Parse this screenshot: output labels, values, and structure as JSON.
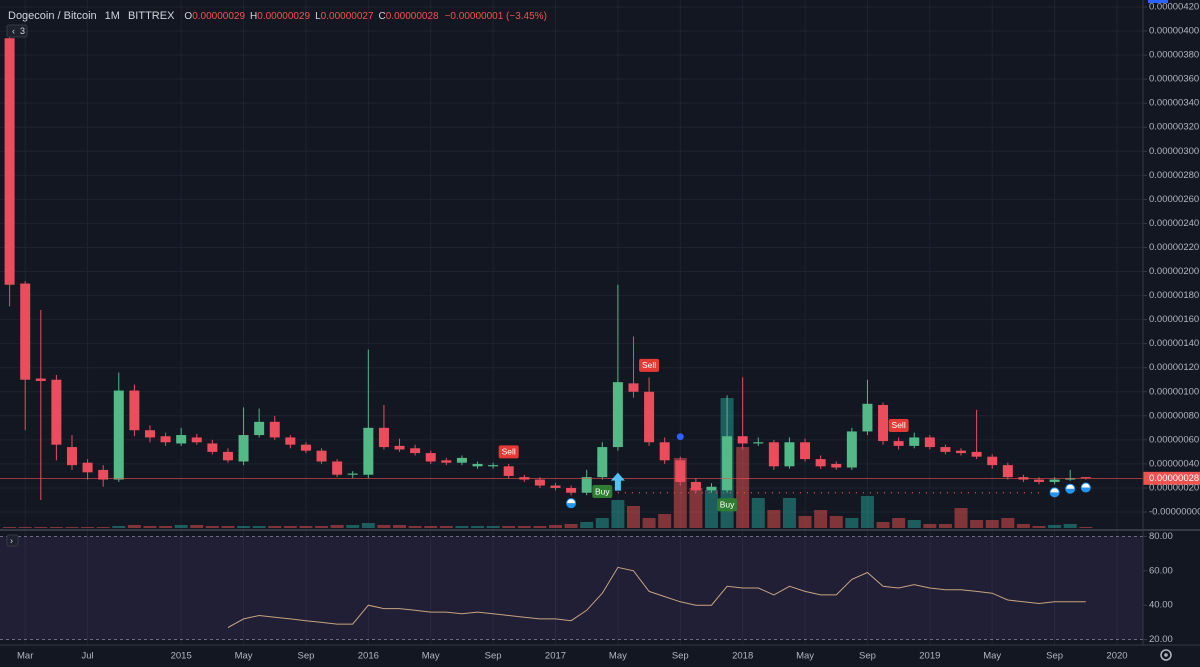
{
  "chart_data": [
    {
      "type": "candlestick",
      "symbol": "Dogecoin / Bitcoin",
      "interval": "1M",
      "exchange": "BITTREX",
      "ohlc_header": [
        {
          "label": "O",
          "value": "0.00000029"
        },
        {
          "label": "H",
          "value": "0.00000029"
        },
        {
          "label": "L",
          "value": "0.00000027"
        },
        {
          "label": "C",
          "value": "0.00000028"
        }
      ],
      "change": "−0.00000001 (−3.45%)",
      "badge": "3",
      "x": [
        "2014-02",
        "2014-03",
        "2014-04",
        "2014-05",
        "2014-06",
        "2014-07",
        "2014-08",
        "2014-09",
        "2014-10",
        "2014-11",
        "2014-12",
        "2015-01",
        "2015-02",
        "2015-03",
        "2015-04",
        "2015-05",
        "2015-06",
        "2015-07",
        "2015-08",
        "2015-09",
        "2015-10",
        "2015-11",
        "2015-12",
        "2016-01",
        "2016-02",
        "2016-03",
        "2016-04",
        "2016-05",
        "2016-06",
        "2016-07",
        "2016-08",
        "2016-09",
        "2016-10",
        "2016-11",
        "2016-12",
        "2017-01",
        "2017-02",
        "2017-03",
        "2017-04",
        "2017-05",
        "2017-06",
        "2017-07",
        "2017-08",
        "2017-09",
        "2017-10",
        "2017-11",
        "2017-12",
        "2018-01",
        "2018-02",
        "2018-03",
        "2018-04",
        "2018-05",
        "2018-06",
        "2018-07",
        "2018-08",
        "2018-09",
        "2018-10",
        "2018-11",
        "2018-12",
        "2019-01",
        "2019-02",
        "2019-03",
        "2019-04",
        "2019-05",
        "2019-06",
        "2019-07",
        "2019-08",
        "2019-09",
        "2019-10",
        "2019-11"
      ],
      "open": [
        3.94e-06,
        1.9e-06,
        1.11e-06,
        1.1e-06,
        5.4e-07,
        4.1e-07,
        3.5e-07,
        2.7e-07,
        1.01e-06,
        6.8e-07,
        6.3e-07,
        5.7e-07,
        6.2e-07,
        5.7e-07,
        5e-07,
        4.2e-07,
        6.4e-07,
        7.5e-07,
        6.2e-07,
        5.6e-07,
        5.1e-07,
        4.2e-07,
        3.1e-07,
        3.1e-07,
        7e-07,
        5.5e-07,
        5.3e-07,
        4.9e-07,
        4.3e-07,
        4.1e-07,
        3.8e-07,
        3.8e-07,
        3.8e-07,
        2.9e-07,
        2.7e-07,
        2.2e-07,
        2e-07,
        1.6e-07,
        2.9e-07,
        5.4e-07,
        1.07e-06,
        1e-06,
        5.8e-07,
        4.3e-07,
        2.5e-07,
        1.8e-07,
        1.8e-07,
        6.3e-07,
        5.7e-07,
        5.8e-07,
        3.8e-07,
        5.8e-07,
        4.4e-07,
        4e-07,
        3.7e-07,
        6.7e-07,
        8.9e-07,
        5.9e-07,
        5.5e-07,
        6.2e-07,
        5.4e-07,
        5.1e-07,
        5e-07,
        4.6e-07,
        3.9e-07,
        2.9e-07,
        2.7e-07,
        2.5e-07,
        2.7e-07,
        2.9e-07
      ],
      "high": [
        4e-06,
        1.92e-06,
        1.68e-06,
        1.14e-06,
        6.4e-07,
        4.4e-07,
        3.9e-07,
        1.16e-06,
        1.06e-06,
        7.2e-07,
        6.6e-07,
        7e-07,
        6.5e-07,
        6e-07,
        5.3e-07,
        8.7e-07,
        8.6e-07,
        8e-07,
        6.4e-07,
        5.8e-07,
        5.3e-07,
        4.4e-07,
        3.4e-07,
        1.35e-06,
        8.9e-07,
        6.1e-07,
        5.6e-07,
        5.1e-07,
        4.5e-07,
        4.7e-07,
        4.2e-07,
        4.1e-07,
        4e-07,
        3.1e-07,
        2.9e-07,
        2.4e-07,
        2.2e-07,
        3.5e-07,
        5.8e-07,
        1.89e-06,
        1.46e-06,
        1.12e-06,
        6.2e-07,
        4.6e-07,
        2.8e-07,
        2.4e-07,
        9.7e-07,
        1.12e-06,
        6.2e-07,
        6e-07,
        6.2e-07,
        6.1e-07,
        4.7e-07,
        4.2e-07,
        7e-07,
        1.1e-06,
        9.1e-07,
        6.2e-07,
        6.6e-07,
        6.4e-07,
        5.6e-07,
        5.3e-07,
        8.5e-07,
        4.8e-07,
        4.1e-07,
        3.1e-07,
        2.9e-07,
        2.9e-07,
        3.5e-07,
        2.9e-07
      ],
      "low": [
        1.71e-06,
        6.8e-07,
        1e-07,
        4.3e-07,
        3.5e-07,
        2.7e-07,
        2.1e-07,
        2.5e-07,
        6.3e-07,
        5.8e-07,
        5.5e-07,
        5.5e-07,
        5.6e-07,
        4.8e-07,
        4.1e-07,
        3.9e-07,
        6.2e-07,
        6e-07,
        5.3e-07,
        4.9e-07,
        4e-07,
        2.9e-07,
        2.8e-07,
        2.8e-07,
        5.2e-07,
        5e-07,
        4.7e-07,
        4e-07,
        3.9e-07,
        3.9e-07,
        3.6e-07,
        3.6e-07,
        2.8e-07,
        2.5e-07,
        2e-07,
        1.8e-07,
        1.4e-07,
        1.4e-07,
        2.7e-07,
        5.1e-07,
        9.5e-07,
        5.5e-07,
        4e-07,
        2.2e-07,
        1.6e-07,
        1.6e-07,
        1.6e-07,
        5.2e-07,
        5.5e-07,
        3.5e-07,
        3.6e-07,
        4.2e-07,
        3.6e-07,
        3.5e-07,
        3.5e-07,
        6.4e-07,
        5.6e-07,
        5.2e-07,
        5.3e-07,
        5.2e-07,
        4.8e-07,
        4.7e-07,
        4.4e-07,
        3.6e-07,
        2.7e-07,
        2.5e-07,
        2.3e-07,
        2.3e-07,
        2.6e-07,
        2.7e-07
      ],
      "close": [
        1.89e-06,
        1.1e-06,
        1.09e-06,
        5.6e-07,
        3.9e-07,
        3.3e-07,
        2.7e-07,
        1.01e-06,
        6.8e-07,
        6.2e-07,
        5.8e-07,
        6.4e-07,
        5.8e-07,
        5e-07,
        4.3e-07,
        6.4e-07,
        7.5e-07,
        6.2e-07,
        5.6e-07,
        5.1e-07,
        4.2e-07,
        3.1e-07,
        3.2e-07,
        7e-07,
        5.4e-07,
        5.2e-07,
        4.9e-07,
        4.2e-07,
        4.1e-07,
        4.5e-07,
        4e-07,
        3.9e-07,
        3e-07,
        2.7e-07,
        2.2e-07,
        2e-07,
        1.6e-07,
        2.9e-07,
        5.4e-07,
        1.08e-06,
        1e-06,
        5.8e-07,
        4.3e-07,
        2.5e-07,
        1.8e-07,
        2.1e-07,
        6.3e-07,
        5.7e-07,
        5.8e-07,
        3.8e-07,
        5.8e-07,
        4.4e-07,
        3.8e-07,
        3.7e-07,
        6.7e-07,
        9e-07,
        5.9e-07,
        5.5e-07,
        6.2e-07,
        5.4e-07,
        5e-07,
        4.9e-07,
        4.6e-07,
        3.9e-07,
        2.9e-07,
        2.7e-07,
        2.5e-07,
        2.7e-07,
        2.8e-07,
        2.8e-07
      ],
      "volume": [
        1,
        1,
        1,
        1,
        1,
        1,
        1,
        2,
        3,
        2,
        2,
        3,
        3,
        2,
        2,
        2,
        2,
        2,
        2,
        2,
        2,
        3,
        3,
        5,
        3,
        3,
        2,
        2,
        2,
        2,
        2,
        2,
        2,
        2,
        2,
        3,
        4,
        6,
        10,
        28,
        22,
        10,
        14,
        70,
        40,
        38,
        130,
        81,
        30,
        18,
        30,
        12,
        18,
        12,
        10,
        32,
        6,
        10,
        8,
        4,
        4,
        20,
        8,
        8,
        10,
        4,
        2,
        3,
        4,
        1
      ],
      "up_color": "#53b987",
      "down_color": "#eb4d5c",
      "volume_up_color": "#26a69a",
      "volume_down_color": "#ef5350",
      "xlim": [
        "2014-01",
        "2020-01"
      ],
      "xticks": [
        {
          "value": "2014-03",
          "label": "Mar"
        },
        {
          "value": "2014-07",
          "label": "Jul"
        },
        {
          "value": "2015-01",
          "label": "2015"
        },
        {
          "value": "2015-05",
          "label": "May"
        },
        {
          "value": "2015-09",
          "label": "Sep"
        },
        {
          "value": "2016-01",
          "label": "2016"
        },
        {
          "value": "2016-05",
          "label": "May"
        },
        {
          "value": "2016-09",
          "label": "Sep"
        },
        {
          "value": "2017-01",
          "label": "2017"
        },
        {
          "value": "2017-05",
          "label": "May"
        },
        {
          "value": "2017-09",
          "label": "Sep"
        },
        {
          "value": "2018-01",
          "label": "2018"
        },
        {
          "value": "2018-05",
          "label": "May"
        },
        {
          "value": "2018-09",
          "label": "Sep"
        },
        {
          "value": "2019-01",
          "label": "2019"
        },
        {
          "value": "2019-05",
          "label": "May"
        },
        {
          "value": "2019-09",
          "label": "Sep"
        },
        {
          "value": "2020-01",
          "label": "2020"
        }
      ],
      "ylim": [
        -1.33e-07,
        4.258e-06
      ],
      "yticks": [
        {
          "value": 4.2e-06,
          "label": "0.00000420"
        },
        {
          "value": 4e-06,
          "label": "0.00000400"
        },
        {
          "value": 3.8e-06,
          "label": "0.00000380"
        },
        {
          "value": 3.6e-06,
          "label": "0.00000360"
        },
        {
          "value": 3.4e-06,
          "label": "0.00000340"
        },
        {
          "value": 3.2e-06,
          "label": "0.00000320"
        },
        {
          "value": 3e-06,
          "label": "0.00000300"
        },
        {
          "value": 2.8e-06,
          "label": "0.00000280"
        },
        {
          "value": 2.6e-06,
          "label": "0.00000260"
        },
        {
          "value": 2.4e-06,
          "label": "0.00000240"
        },
        {
          "value": 2.2e-06,
          "label": "0.00000220"
        },
        {
          "value": 2e-06,
          "label": "0.00000200"
        },
        {
          "value": 1.8e-06,
          "label": "0.00000180"
        },
        {
          "value": 1.6e-06,
          "label": "0.00000160"
        },
        {
          "value": 1.4e-06,
          "label": "0.00000140"
        },
        {
          "value": 1.2e-06,
          "label": "0.00000120"
        },
        {
          "value": 1e-06,
          "label": "0.00000100"
        },
        {
          "value": 8e-07,
          "label": "0.00000080"
        },
        {
          "value": 6e-07,
          "label": "0.00000060"
        },
        {
          "value": 4e-07,
          "label": "0.00000040"
        },
        {
          "value": 2e-07,
          "label": "0.00000020"
        },
        {
          "value": 0,
          "label": "-0.00000000"
        }
      ],
      "grid": true,
      "current_price": {
        "value": 2.8e-07,
        "label": "0.00000028"
      },
      "signals": [
        {
          "label": "Sell",
          "x": "2016-10",
          "position": "above"
        },
        {
          "label": "Sell",
          "x": "2017-07",
          "position": "above"
        },
        {
          "label": "Sell",
          "x": "2018-11",
          "position": "above"
        },
        {
          "label": "Buy",
          "x": "2017-04",
          "position": "below"
        },
        {
          "label": "Buy",
          "x": "2017-12",
          "position": "below"
        }
      ],
      "markers": [
        {
          "shape": "arrow-up",
          "x": "2017-05",
          "position": "below"
        },
        {
          "shape": "dot",
          "x": "2017-09",
          "position": "above"
        },
        {
          "shape": "half-circle",
          "x": "2017-02",
          "position": "below"
        },
        {
          "shape": "half-circle",
          "x": "2019-09",
          "position": "below"
        },
        {
          "shape": "half-circle",
          "x": "2019-10",
          "position": "below"
        },
        {
          "shape": "half-circle",
          "x": "2019-11",
          "position": "below"
        }
      ],
      "dotted_level": {
        "value": 1.6e-07,
        "from": "2017-05",
        "to": "2019-08"
      }
    },
    {
      "type": "line",
      "color": "#c9a27e",
      "x": [
        "2014-02",
        "2014-03",
        "2014-04",
        "2014-05",
        "2014-06",
        "2014-07",
        "2014-08",
        "2014-09",
        "2014-10",
        "2014-11",
        "2014-12",
        "2015-01",
        "2015-02",
        "2015-03",
        "2015-04",
        "2015-05",
        "2015-06",
        "2015-07",
        "2015-08",
        "2015-09",
        "2015-10",
        "2015-11",
        "2015-12",
        "2016-01",
        "2016-02",
        "2016-03",
        "2016-04",
        "2016-05",
        "2016-06",
        "2016-07",
        "2016-08",
        "2016-09",
        "2016-10",
        "2016-11",
        "2016-12",
        "2017-01",
        "2017-02",
        "2017-03",
        "2017-04",
        "2017-05",
        "2017-06",
        "2017-07",
        "2017-08",
        "2017-09",
        "2017-10",
        "2017-11",
        "2017-12",
        "2018-01",
        "2018-02",
        "2018-03",
        "2018-04",
        "2018-05",
        "2018-06",
        "2018-07",
        "2018-08",
        "2018-09",
        "2018-10",
        "2018-11",
        "2018-12",
        "2019-01",
        "2019-02",
        "2019-03",
        "2019-04",
        "2019-05",
        "2019-06",
        "2019-07",
        "2019-08",
        "2019-09",
        "2019-10",
        "2019-11"
      ],
      "values": [
        null,
        null,
        null,
        null,
        null,
        null,
        null,
        null,
        null,
        null,
        null,
        null,
        null,
        null,
        27,
        32,
        34,
        33,
        32,
        31,
        30,
        29,
        29,
        40,
        38,
        38,
        37,
        36,
        36,
        35,
        36,
        35,
        34,
        33,
        32,
        32,
        31,
        37,
        47,
        62,
        60,
        48,
        45,
        42,
        40,
        40,
        51,
        50,
        50,
        46,
        51,
        48,
        46,
        46,
        55,
        59,
        51,
        50,
        52,
        50,
        49,
        49,
        48,
        47,
        43,
        42,
        41,
        42,
        42,
        42
      ],
      "xlim": [
        "2014-01",
        "2020-01"
      ],
      "ylim": [
        18,
        82
      ],
      "yticks": [
        {
          "value": 80,
          "label": "80.00"
        },
        {
          "value": 60,
          "label": "60.00"
        },
        {
          "value": 40,
          "label": "40.00"
        },
        {
          "value": 20,
          "label": "20.00"
        }
      ],
      "band": [
        20,
        80
      ]
    }
  ]
}
